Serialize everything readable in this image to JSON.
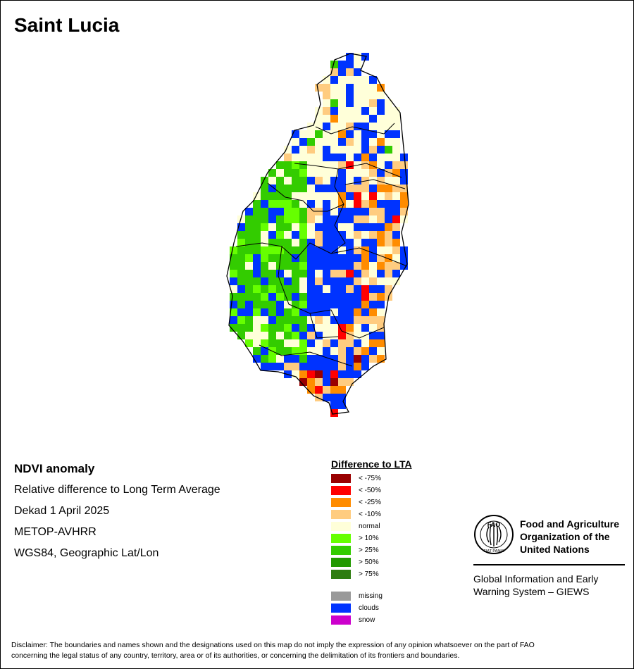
{
  "title": "Saint Lucia",
  "info": {
    "heading": "NDVI anomaly",
    "line1": "Relative difference to Long Term Average",
    "line2": "Dekad 1 April 2025",
    "line3": "METOP-AVHRR",
    "line4": "WGS84, Geographic Lat/Lon"
  },
  "legend": {
    "title": "Difference to LTA",
    "items": [
      {
        "label": "< -75%",
        "color": "#990000"
      },
      {
        "label": "< -50%",
        "color": "#ff0000"
      },
      {
        "label": "< -25%",
        "color": "#ff8c00"
      },
      {
        "label": "< -10%",
        "color": "#ffcc80"
      },
      {
        "label": "normal",
        "color": "#ffffd9"
      },
      {
        "label": "> 10%",
        "color": "#66ff00"
      },
      {
        "label": "> 25%",
        "color": "#33cc00"
      },
      {
        "label": "> 50%",
        "color": "#229900"
      },
      {
        "label": "> 75%",
        "color": "#2e7d10"
      }
    ],
    "extra": [
      {
        "label": "missing",
        "color": "#999999"
      },
      {
        "label": "clouds",
        "color": "#0033ff"
      },
      {
        "label": "snow",
        "color": "#cc00cc"
      }
    ]
  },
  "organization": {
    "name_line1": "Food and Agriculture",
    "name_line2": "Organization of the",
    "name_line3": "United Nations",
    "logo_text": "FAO",
    "logo_motto": "FIAT PANIS",
    "system_line1": "Global Information and Early",
    "system_line2": "Warning System – GIEWS"
  },
  "disclaimer_line1": "Disclaimer: The boundaries and names shown and the designations used on this map do not imply the expression of any opinion whatsoever on the part of FAO",
  "disclaimer_line2": "concerning the legal status of any country, territory, area or of its authorities, or concerning the delimitation of its frontiers and boundaries."
}
